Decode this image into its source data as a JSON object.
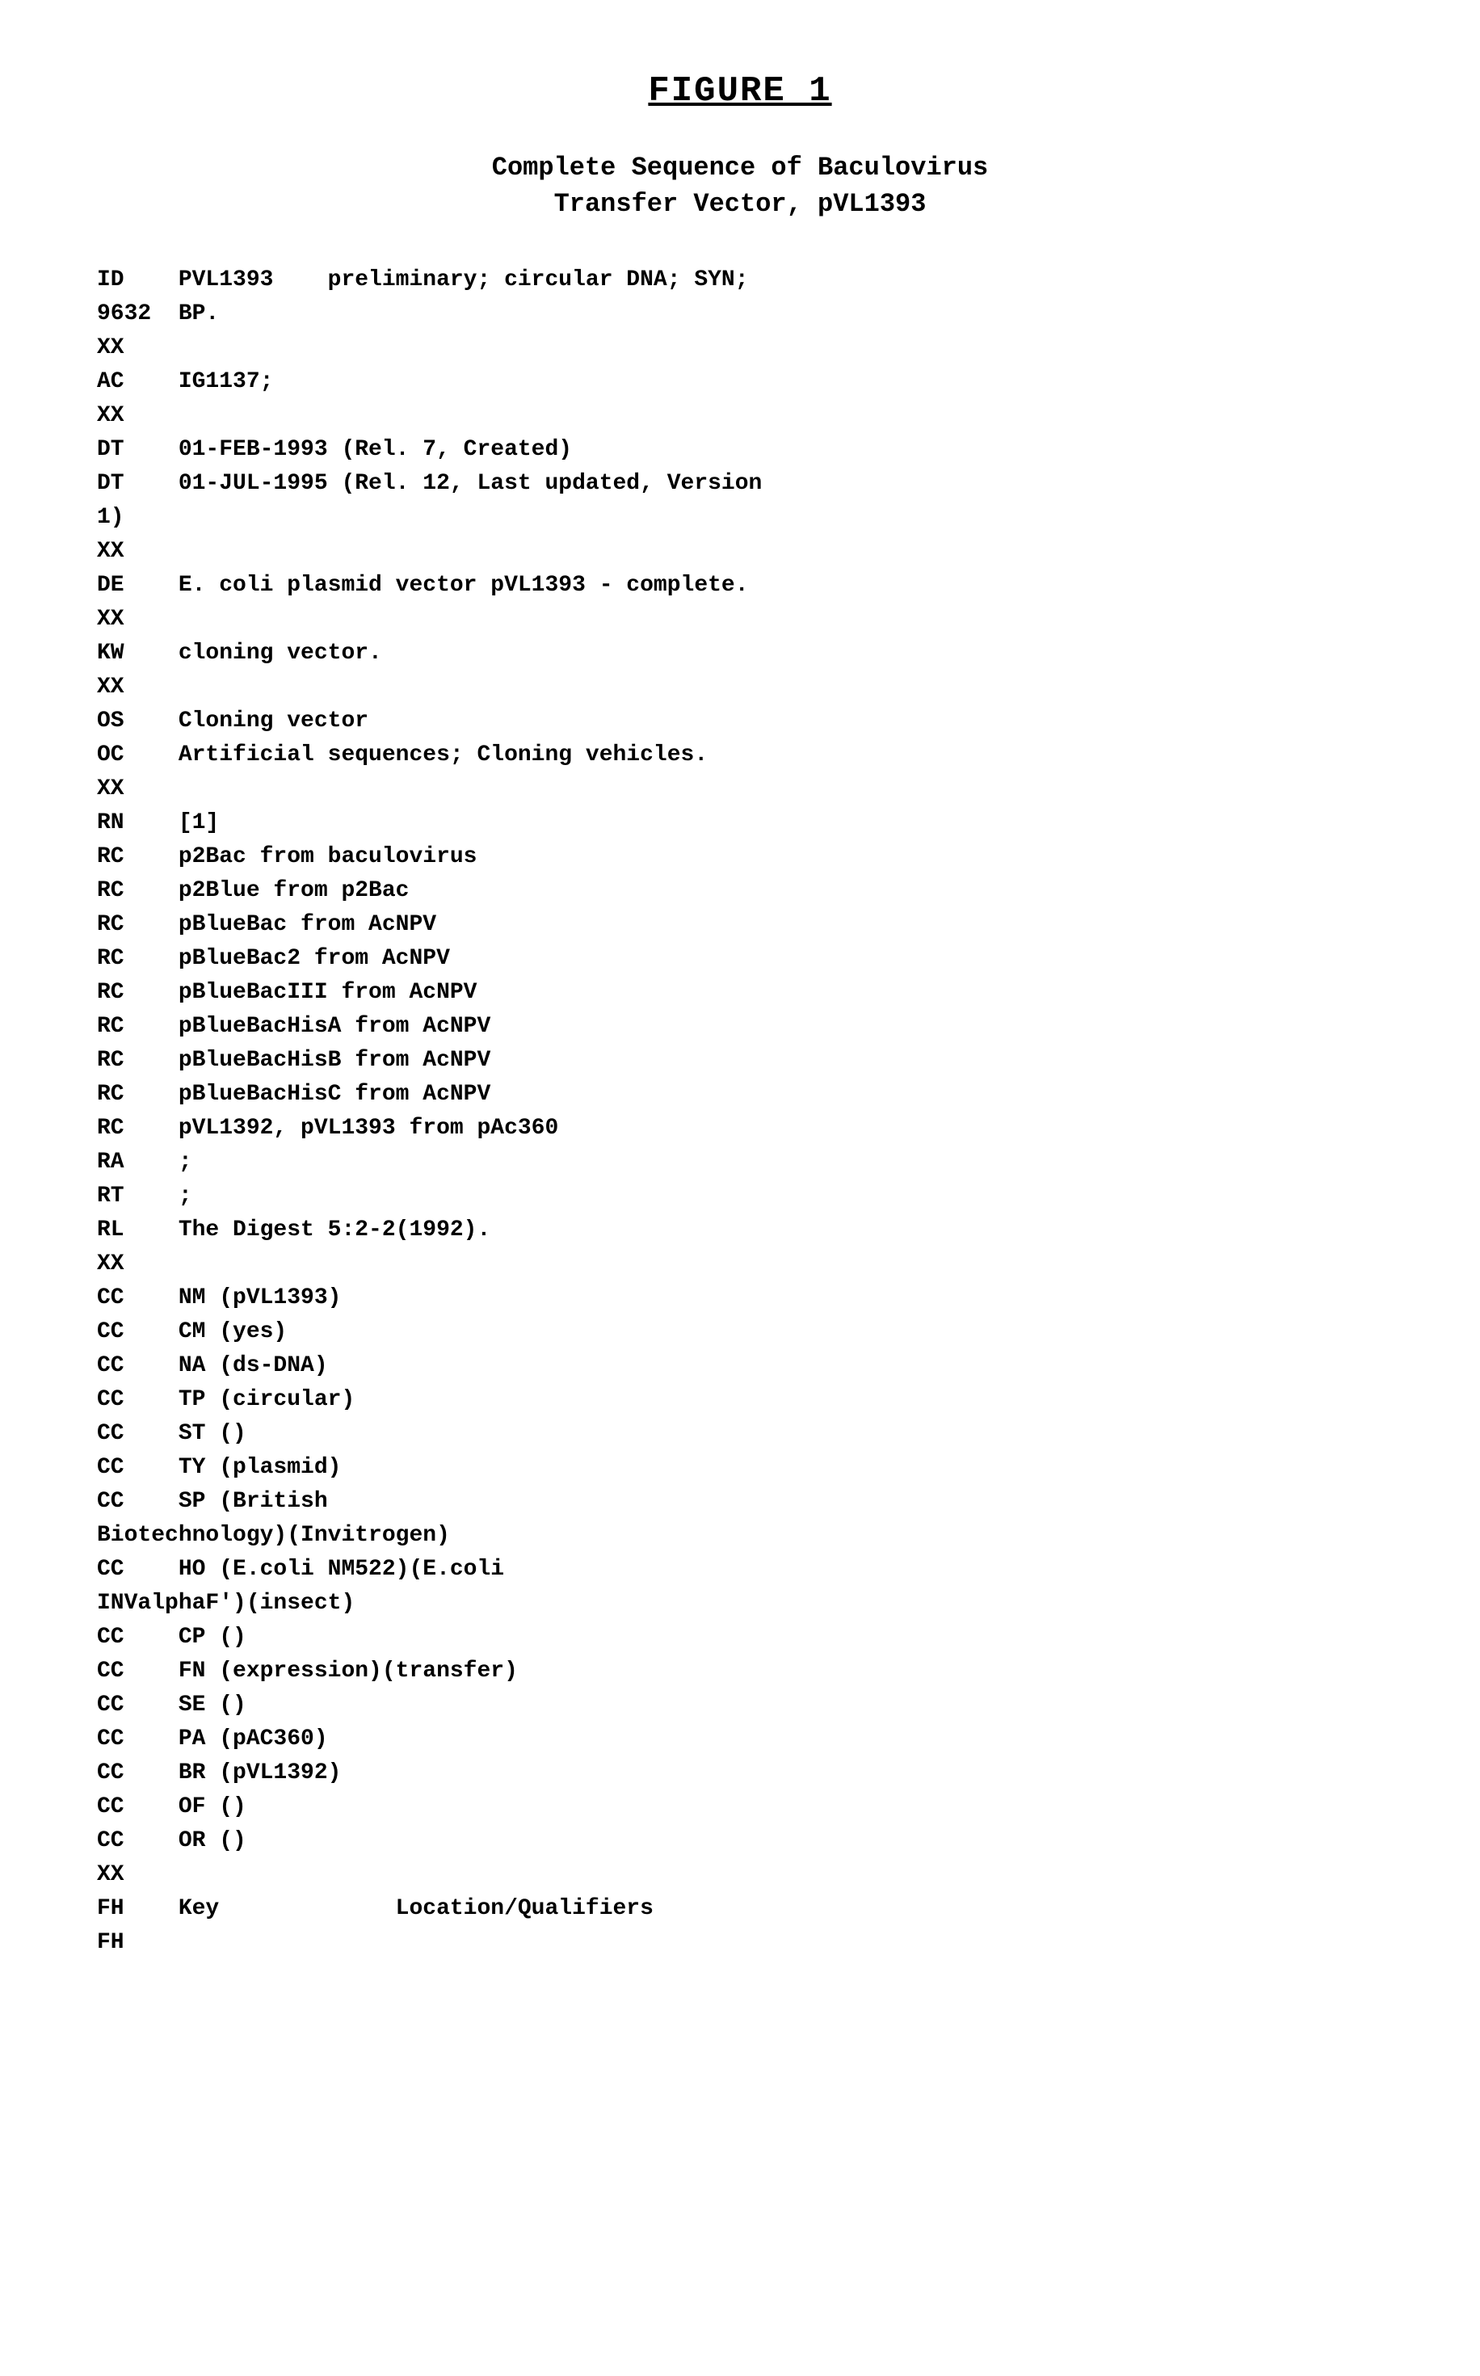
{
  "figure_title": "FIGURE  1",
  "subtitle_line1": "Complete  Sequence  of  Baculovirus",
  "subtitle_line2": "Transfer  Vector,  pVL1393",
  "lines": [
    {
      "code": "ID",
      "text": "PVL1393    preliminary; circular DNA; SYN;"
    },
    {
      "code": "9632",
      "text": "BP."
    },
    {
      "code": "XX",
      "text": ""
    },
    {
      "code": "AC",
      "text": "IG1137;"
    },
    {
      "code": "XX",
      "text": ""
    },
    {
      "code": "DT",
      "text": "01-FEB-1993 (Rel. 7, Created)"
    },
    {
      "code": "DT",
      "text": "01-JUL-1995 (Rel. 12, Last updated, Version"
    },
    {
      "code": "1)",
      "text": ""
    },
    {
      "code": "XX",
      "text": ""
    },
    {
      "code": "DE",
      "text": "E. coli plasmid vector pVL1393 - complete."
    },
    {
      "code": "XX",
      "text": ""
    },
    {
      "code": "KW",
      "text": "cloning vector."
    },
    {
      "code": "XX",
      "text": ""
    },
    {
      "code": "OS",
      "text": "Cloning vector"
    },
    {
      "code": "OC",
      "text": "Artificial sequences; Cloning vehicles."
    },
    {
      "code": "XX",
      "text": ""
    },
    {
      "code": "RN",
      "text": "[1]"
    },
    {
      "code": "RC",
      "text": "p2Bac from baculovirus"
    },
    {
      "code": "RC",
      "text": "p2Blue from p2Bac"
    },
    {
      "code": "RC",
      "text": "pBlueBac from AcNPV"
    },
    {
      "code": "RC",
      "text": "pBlueBac2 from AcNPV"
    },
    {
      "code": "RC",
      "text": "pBlueBacIII from AcNPV"
    },
    {
      "code": "RC",
      "text": "pBlueBacHisA from AcNPV"
    },
    {
      "code": "RC",
      "text": "pBlueBacHisB from AcNPV"
    },
    {
      "code": "RC",
      "text": "pBlueBacHisC from AcNPV"
    },
    {
      "code": "RC",
      "text": "pVL1392, pVL1393 from pAc360"
    },
    {
      "code": "RA",
      "text": ";"
    },
    {
      "code": "RT",
      "text": ";"
    },
    {
      "code": "RL",
      "text": "The Digest 5:2-2(1992)."
    },
    {
      "code": "XX",
      "text": ""
    },
    {
      "code": "CC",
      "text": "NM (pVL1393)"
    },
    {
      "code": "CC",
      "text": "CM (yes)"
    },
    {
      "code": "CC",
      "text": "NA (ds-DNA)"
    },
    {
      "code": "CC",
      "text": "TP (circular)"
    },
    {
      "code": "CC",
      "text": "ST ()"
    },
    {
      "code": "CC",
      "text": "TY (plasmid)"
    },
    {
      "code": "CC",
      "text": "SP (British"
    },
    {
      "code": "",
      "text": "Biotechnology)(Invitrogen)",
      "nocol": true
    },
    {
      "code": "CC",
      "text": "HO (E.coli NM522)(E.coli"
    },
    {
      "code": "",
      "text": "INValphaF')(insect)",
      "nocol": true
    },
    {
      "code": "CC",
      "text": "CP ()"
    },
    {
      "code": "CC",
      "text": "FN (expression)(transfer)"
    },
    {
      "code": "CC",
      "text": "SE ()"
    },
    {
      "code": "CC",
      "text": "PA (pAC360)"
    },
    {
      "code": "CC",
      "text": "BR (pVL1392)"
    },
    {
      "code": "CC",
      "text": "OF ()"
    },
    {
      "code": "CC",
      "text": "OR ()"
    },
    {
      "code": "XX",
      "text": ""
    },
    {
      "code": "FH",
      "text": "Key             Location/Qualifiers"
    },
    {
      "code": "FH",
      "text": ""
    }
  ]
}
